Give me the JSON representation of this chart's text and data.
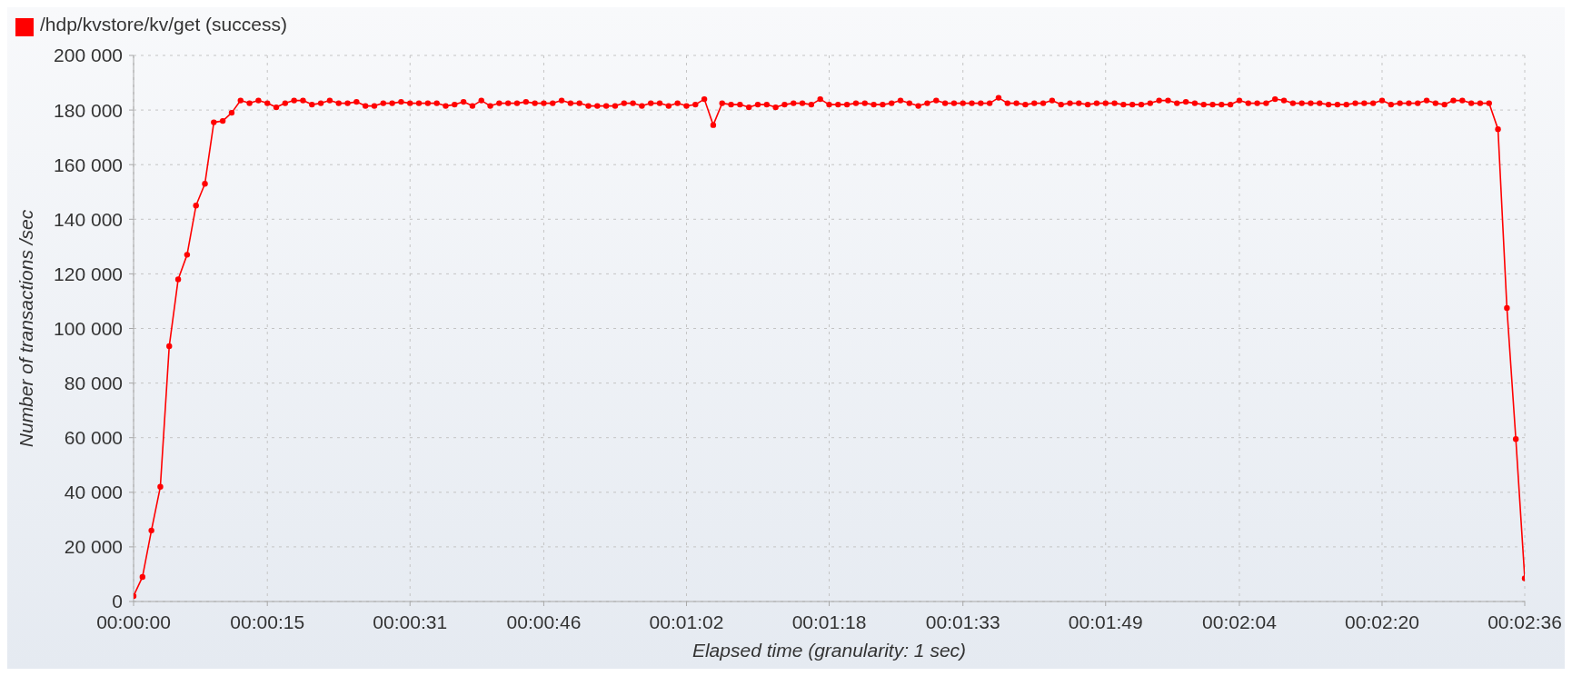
{
  "chart_data": {
    "type": "line",
    "xlabel": "Elapsed time (granularity: 1 sec)",
    "ylabel": "Number of transactions /sec",
    "x": [
      0,
      1,
      2,
      3,
      4,
      5,
      6,
      7,
      8,
      9,
      10,
      11,
      12,
      13,
      14,
      15,
      16,
      17,
      18,
      19,
      20,
      21,
      22,
      23,
      24,
      25,
      26,
      27,
      28,
      29,
      30,
      31,
      32,
      33,
      34,
      35,
      36,
      37,
      38,
      39,
      40,
      41,
      42,
      43,
      44,
      45,
      46,
      47,
      48,
      49,
      50,
      51,
      52,
      53,
      54,
      55,
      56,
      57,
      58,
      59,
      60,
      61,
      62,
      63,
      64,
      65,
      66,
      67,
      68,
      69,
      70,
      71,
      72,
      73,
      74,
      75,
      76,
      77,
      78,
      79,
      80,
      81,
      82,
      83,
      84,
      85,
      86,
      87,
      88,
      89,
      90,
      91,
      92,
      93,
      94,
      95,
      96,
      97,
      98,
      99,
      100,
      101,
      102,
      103,
      104,
      105,
      106,
      107,
      108,
      109,
      110,
      111,
      112,
      113,
      114,
      115,
      116,
      117,
      118,
      119,
      120,
      121,
      122,
      123,
      124,
      125,
      126,
      127,
      128,
      129,
      130,
      131,
      132,
      133,
      134,
      135,
      136,
      137,
      138,
      139,
      140,
      141,
      142,
      143,
      144,
      145,
      146,
      147,
      148,
      149,
      150,
      151,
      152,
      153,
      154,
      155,
      156
    ],
    "series": [
      {
        "name": "/hdp/kvstore/kv/get (success)",
        "color": "#ff0000",
        "values": [
          2000,
          9000,
          26000,
          42000,
          93500,
          118000,
          127000,
          145000,
          153000,
          175500,
          176000,
          179000,
          183500,
          182500,
          183500,
          182500,
          181000,
          182500,
          183500,
          183500,
          182000,
          182500,
          183500,
          182500,
          182500,
          183000,
          181500,
          181500,
          182500,
          182500,
          183000,
          182500,
          182500,
          182500,
          182500,
          181500,
          182000,
          183000,
          181500,
          183500,
          181500,
          182500,
          182500,
          182500,
          183000,
          182500,
          182500,
          182500,
          183500,
          182500,
          182500,
          181500,
          181500,
          181500,
          181500,
          182500,
          182500,
          181500,
          182500,
          182500,
          181500,
          182500,
          181500,
          182000,
          184000,
          174500,
          182500,
          182000,
          182000,
          181000,
          182000,
          182000,
          181000,
          182000,
          182500,
          182500,
          182000,
          184000,
          182000,
          182000,
          182000,
          182500,
          182500,
          182000,
          182000,
          182500,
          183500,
          182500,
          181500,
          182500,
          183500,
          182500,
          182500,
          182500,
          182500,
          182500,
          182500,
          184500,
          182500,
          182500,
          182000,
          182500,
          182500,
          183500,
          182000,
          182500,
          182500,
          182000,
          182500,
          182500,
          182500,
          182000,
          182000,
          182000,
          182500,
          183500,
          183500,
          182500,
          183000,
          182500,
          182000,
          182000,
          182000,
          182000,
          183500,
          182500,
          182500,
          182500,
          184000,
          183500,
          182500,
          182500,
          182500,
          182500,
          182000,
          182000,
          182000,
          182500,
          182500,
          182500,
          183500,
          182000,
          182500,
          182500,
          182500,
          183500,
          182500,
          182000,
          183500,
          183500,
          182500,
          182500,
          182500,
          173000,
          107500,
          59500,
          8500
        ]
      }
    ],
    "xlim": [
      0,
      156
    ],
    "xticks": [
      {
        "value": 0,
        "label": "00:00:00"
      },
      {
        "value": 15,
        "label": "00:00:15"
      },
      {
        "value": 31,
        "label": "00:00:31"
      },
      {
        "value": 46,
        "label": "00:00:46"
      },
      {
        "value": 62,
        "label": "00:01:02"
      },
      {
        "value": 78,
        "label": "00:01:18"
      },
      {
        "value": 93,
        "label": "00:01:33"
      },
      {
        "value": 109,
        "label": "00:01:49"
      },
      {
        "value": 124,
        "label": "00:02:04"
      },
      {
        "value": 140,
        "label": "00:02:20"
      },
      {
        "value": 156,
        "label": "00:02:36"
      }
    ],
    "ylim": [
      0,
      200000
    ],
    "yticks": [
      0,
      {
        "value": 20000,
        "label": "20 000"
      },
      {
        "value": 40000,
        "label": "40 000"
      },
      {
        "value": 60000,
        "label": "60 000"
      },
      {
        "value": 80000,
        "label": "80 000"
      },
      {
        "value": 100000,
        "label": "100 000"
      },
      {
        "value": 120000,
        "label": "120 000"
      },
      {
        "value": 140000,
        "label": "140 000"
      },
      {
        "value": 160000,
        "label": "160 000"
      },
      {
        "value": 180000,
        "label": "180 000"
      },
      {
        "value": 200000,
        "label": "200 000"
      }
    ],
    "grid": true,
    "legend": "top left",
    "marker": "circle",
    "line_style": "solid"
  }
}
